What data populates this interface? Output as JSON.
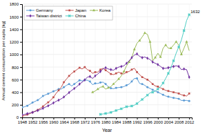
{
  "chart_data": {
    "type": "line",
    "xlabel": "Year",
    "ylabel": "Annual cement consumption per capita [kg]",
    "annotation": "1632",
    "xlim": [
      1948,
      2013
    ],
    "ylim": [
      0,
      1800
    ],
    "xticks": [
      1948,
      1952,
      1956,
      1960,
      1964,
      1968,
      1972,
      1976,
      1980,
      1984,
      1988,
      1992,
      1996,
      2000,
      2004,
      2008,
      2012
    ],
    "yticks": [
      0,
      200,
      400,
      600,
      800,
      1000,
      1200,
      1400,
      1600,
      1800
    ],
    "grid": true,
    "legend": "upper left",
    "series": [
      {
        "name": "Germany",
        "color": "#5b9bd5",
        "marker": "circle",
        "x": [
          1948,
          1949,
          1950,
          1951,
          1952,
          1953,
          1954,
          1955,
          1956,
          1957,
          1958,
          1959,
          1960,
          1961,
          1962,
          1963,
          1964,
          1965,
          1966,
          1967,
          1968,
          1969,
          1970,
          1971,
          1972,
          1973,
          1974,
          1975,
          1976,
          1977,
          1978,
          1979,
          1980,
          1981,
          1982,
          1983,
          1984,
          1985,
          1986,
          1987,
          1988,
          1989,
          1990,
          1991,
          1992,
          1993,
          1994,
          1995,
          1996,
          1997,
          1998,
          1999,
          2000,
          2001,
          2002,
          2003,
          2004,
          2005,
          2006,
          2007,
          2008,
          2009,
          2010,
          2011,
          2012
        ],
        "values": [
          160,
          170,
          185,
          210,
          235,
          255,
          275,
          305,
          340,
          360,
          375,
          395,
          415,
          430,
          450,
          450,
          480,
          510,
          530,
          500,
          530,
          560,
          590,
          580,
          595,
          590,
          570,
          520,
          540,
          540,
          555,
          560,
          530,
          490,
          465,
          455,
          470,
          475,
          480,
          490,
          510,
          530,
          570,
          620,
          620,
          540,
          530,
          510,
          480,
          460,
          440,
          420,
          400,
          380,
          360,
          340,
          330,
          320,
          310,
          305,
          295,
          270,
          270,
          270,
          260
        ]
      },
      {
        "name": "Japan",
        "color": "#c0504d",
        "marker": "square",
        "x": [
          1948,
          1949,
          1950,
          1951,
          1952,
          1953,
          1954,
          1955,
          1956,
          1957,
          1958,
          1959,
          1960,
          1961,
          1962,
          1963,
          1964,
          1965,
          1966,
          1967,
          1968,
          1969,
          1970,
          1971,
          1972,
          1973,
          1974,
          1975,
          1976,
          1977,
          1978,
          1979,
          1980,
          1981,
          1982,
          1983,
          1984,
          1985,
          1986,
          1987,
          1988,
          1989,
          1990,
          1991,
          1992,
          1993,
          1994,
          1995,
          1996,
          1997,
          1998,
          1999,
          2000,
          2001,
          2002,
          2003,
          2004,
          2005,
          2006,
          2007,
          2008,
          2009,
          2010,
          2011,
          2012
        ],
        "values": [
          20,
          30,
          45,
          60,
          80,
          100,
          120,
          145,
          175,
          210,
          240,
          275,
          320,
          380,
          430,
          480,
          560,
          610,
          660,
          700,
          730,
          760,
          790,
          770,
          800,
          760,
          740,
          700,
          720,
          720,
          760,
          780,
          750,
          720,
          690,
          680,
          700,
          720,
          700,
          690,
          720,
          730,
          760,
          780,
          720,
          680,
          640,
          620,
          600,
          570,
          530,
          500,
          490,
          470,
          450,
          430,
          420,
          410,
          400,
          390,
          380,
          360,
          350,
          340,
          380
        ]
      },
      {
        "name": "Korea",
        "color": "#9bbb59",
        "marker": "triangle",
        "x": [
          1975,
          1976,
          1977,
          1978,
          1979,
          1980,
          1981,
          1982,
          1983,
          1984,
          1985,
          1986,
          1987,
          1988,
          1989,
          1990,
          1991,
          1992,
          1993,
          1994,
          1995,
          1996,
          1997,
          1998,
          1999,
          2000,
          2001,
          2002,
          2003,
          2004,
          2005,
          2006,
          2007,
          2008,
          2009,
          2010,
          2011,
          2012
        ],
        "values": [
          400,
          420,
          450,
          480,
          490,
          450,
          470,
          490,
          530,
          570,
          610,
          660,
          730,
          820,
          880,
          950,
          1080,
          1180,
          1220,
          1280,
          1340,
          1320,
          1200,
          900,
          950,
          1020,
          960,
          1100,
          1150,
          1100,
          1100,
          1150,
          1200,
          1150,
          1000,
          1100,
          1200,
          1060
        ]
      },
      {
        "name": "Taiwan district",
        "color": "#7030a0",
        "marker": "diamond",
        "x": [
          1948,
          1949,
          1950,
          1951,
          1952,
          1953,
          1954,
          1955,
          1956,
          1957,
          1958,
          1959,
          1960,
          1961,
          1962,
          1963,
          1964,
          1965,
          1966,
          1967,
          1968,
          1969,
          1970,
          1971,
          1972,
          1973,
          1974,
          1975,
          1976,
          1977,
          1978,
          1979,
          1980,
          1981,
          1982,
          1983,
          1984,
          1985,
          1986,
          1987,
          1988,
          1989,
          1990,
          1991,
          1992,
          1993,
          1994,
          1995,
          1996,
          1997,
          1998,
          1999,
          2000,
          2001,
          2002,
          2003,
          2004,
          2005,
          2006,
          2007,
          2008,
          2009,
          2010,
          2011,
          2012
        ],
        "values": [
          40,
          50,
          60,
          70,
          80,
          95,
          110,
          125,
          145,
          165,
          185,
          205,
          230,
          255,
          275,
          295,
          325,
          360,
          395,
          430,
          460,
          490,
          530,
          560,
          595,
          640,
          650,
          620,
          660,
          690,
          730,
          770,
          790,
          770,
          760,
          750,
          780,
          800,
          810,
          820,
          860,
          900,
          950,
          990,
          1010,
          970,
          950,
          960,
          940,
          920,
          880,
          860,
          840,
          810,
          780,
          780,
          790,
          800,
          810,
          820,
          810,
          760,
          770,
          760,
          640
        ]
      },
      {
        "name": "China",
        "color": "#4ecdc4",
        "marker": "x",
        "x": [
          1978,
          1979,
          1980,
          1981,
          1982,
          1983,
          1984,
          1985,
          1986,
          1987,
          1988,
          1989,
          1990,
          1991,
          1992,
          1993,
          1994,
          1995,
          1996,
          1997,
          1998,
          1999,
          2000,
          2001,
          2002,
          2003,
          2004,
          2005,
          2006,
          2007,
          2008,
          2009,
          2010,
          2011,
          2012
        ],
        "values": [
          50,
          55,
          62,
          68,
          80,
          95,
          110,
          125,
          138,
          155,
          170,
          175,
          180,
          195,
          220,
          255,
          285,
          320,
          355,
          390,
          400,
          420,
          450,
          490,
          545,
          620,
          700,
          790,
          900,
          1020,
          1120,
          1230,
          1380,
          1540,
          1632
        ]
      }
    ]
  }
}
